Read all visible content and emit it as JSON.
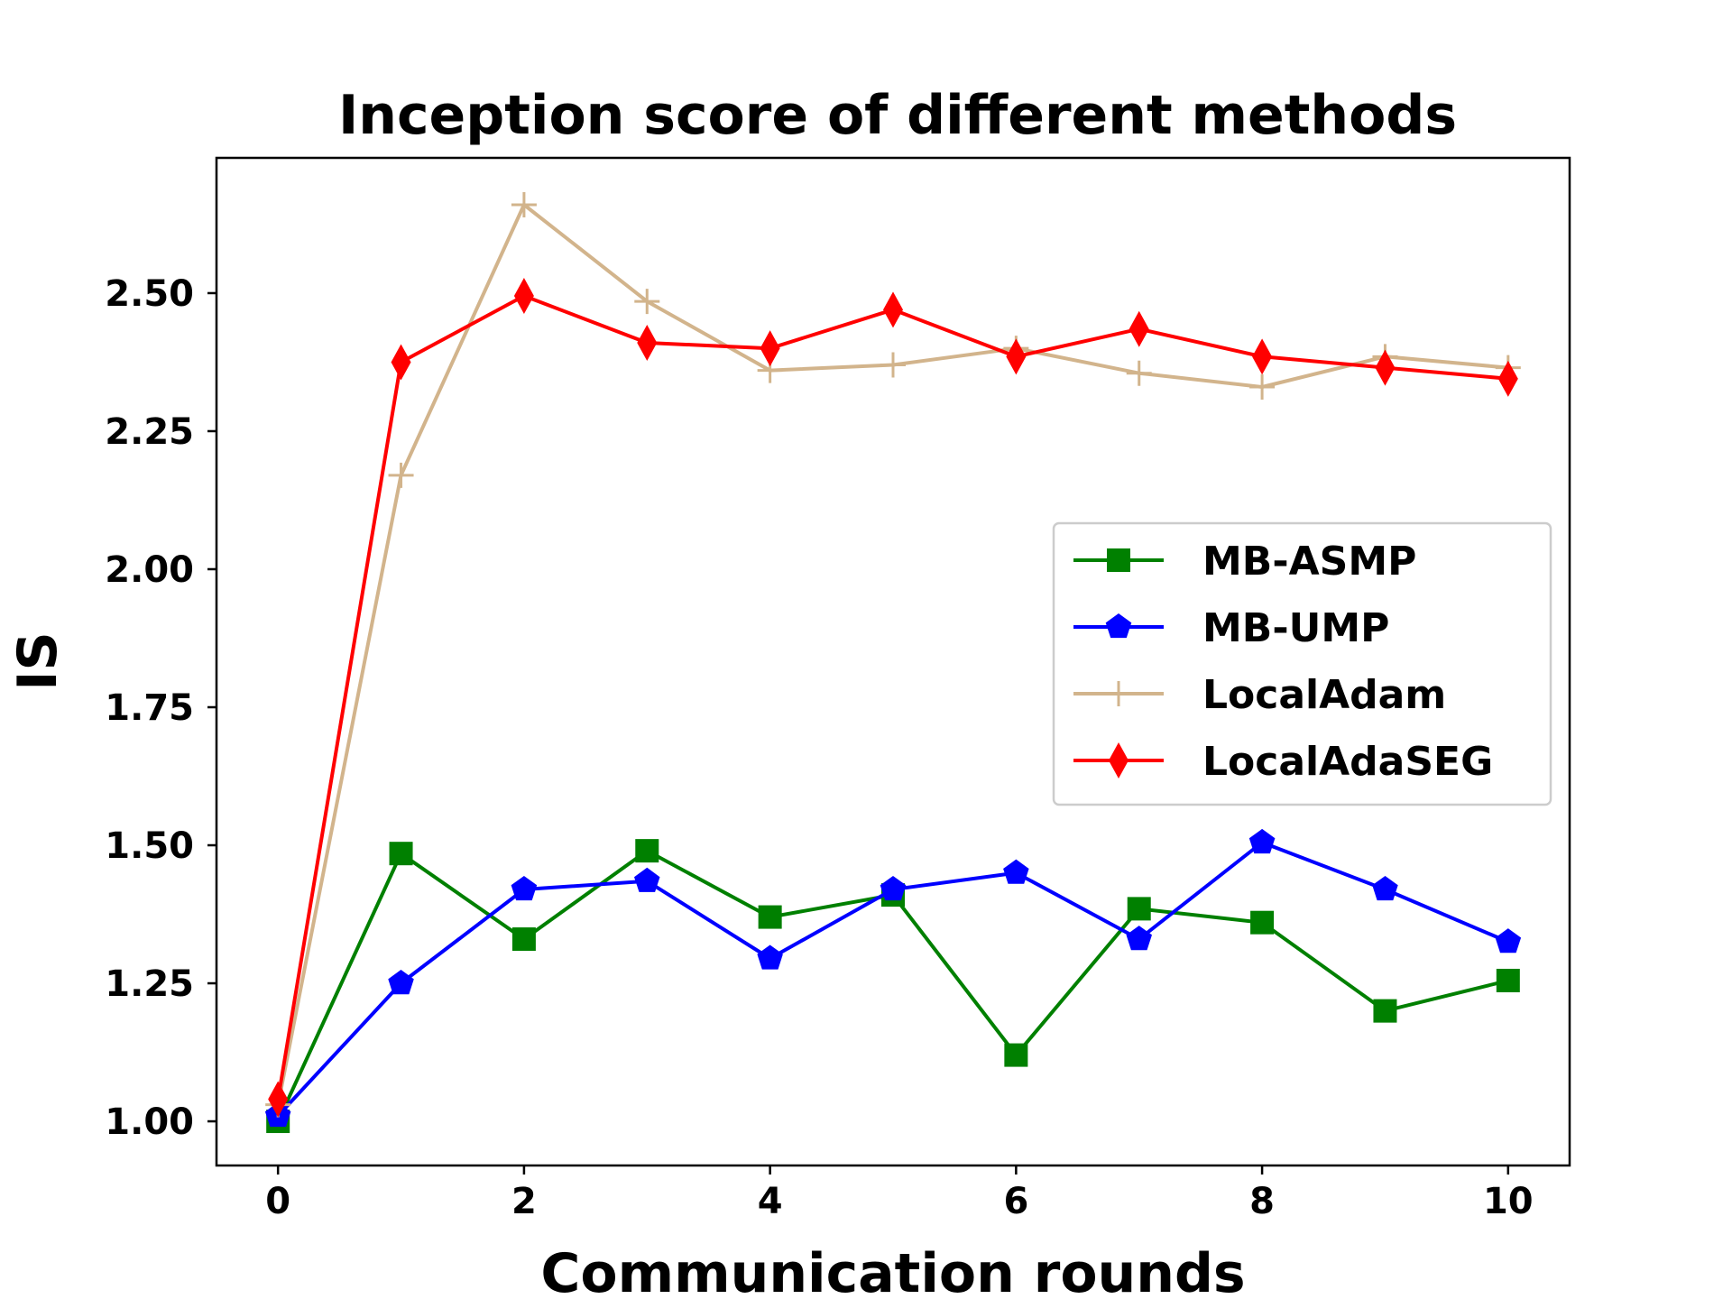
{
  "chart_data": {
    "type": "line",
    "title": "Inception score of different methods",
    "xlabel": "Communication rounds",
    "ylabel": "IS",
    "xlim": [
      -0.5,
      10.5
    ],
    "ylim": [
      0.92,
      2.745
    ],
    "xticks": [
      0,
      2,
      4,
      6,
      8,
      10
    ],
    "xtick_labels": [
      "0",
      "2",
      "4",
      "6",
      "8",
      "10"
    ],
    "yticks": [
      1.0,
      1.25,
      1.5,
      1.75,
      2.0,
      2.25,
      2.5
    ],
    "ytick_labels": [
      "1.00",
      "1.25",
      "1.50",
      "1.75",
      "2.00",
      "2.25",
      "2.50"
    ],
    "grid": false,
    "legend_position": "center-right",
    "x": [
      0,
      1,
      2,
      3,
      4,
      5,
      6,
      7,
      8,
      9,
      10
    ],
    "series": [
      {
        "name": "MB-ASMP",
        "color": "#008000",
        "marker": "square",
        "values": [
          1.0,
          1.485,
          1.33,
          1.49,
          1.37,
          1.41,
          1.12,
          1.385,
          1.36,
          1.2,
          1.255
        ]
      },
      {
        "name": "MB-UMP",
        "color": "#0000ff",
        "marker": "pentagon",
        "values": [
          1.01,
          1.25,
          1.42,
          1.435,
          1.295,
          1.42,
          1.45,
          1.33,
          1.505,
          1.42,
          1.325
        ]
      },
      {
        "name": "LocalAdam",
        "color": "#d2b48c",
        "marker": "plus",
        "values": [
          1.03,
          2.17,
          2.66,
          2.485,
          2.36,
          2.37,
          2.4,
          2.355,
          2.33,
          2.385,
          2.365
        ]
      },
      {
        "name": "LocalAdaSEG",
        "color": "#ff0000",
        "marker": "thin-diamond",
        "values": [
          1.04,
          2.375,
          2.495,
          2.41,
          2.4,
          2.47,
          2.385,
          2.435,
          2.385,
          2.365,
          2.345
        ]
      }
    ]
  }
}
